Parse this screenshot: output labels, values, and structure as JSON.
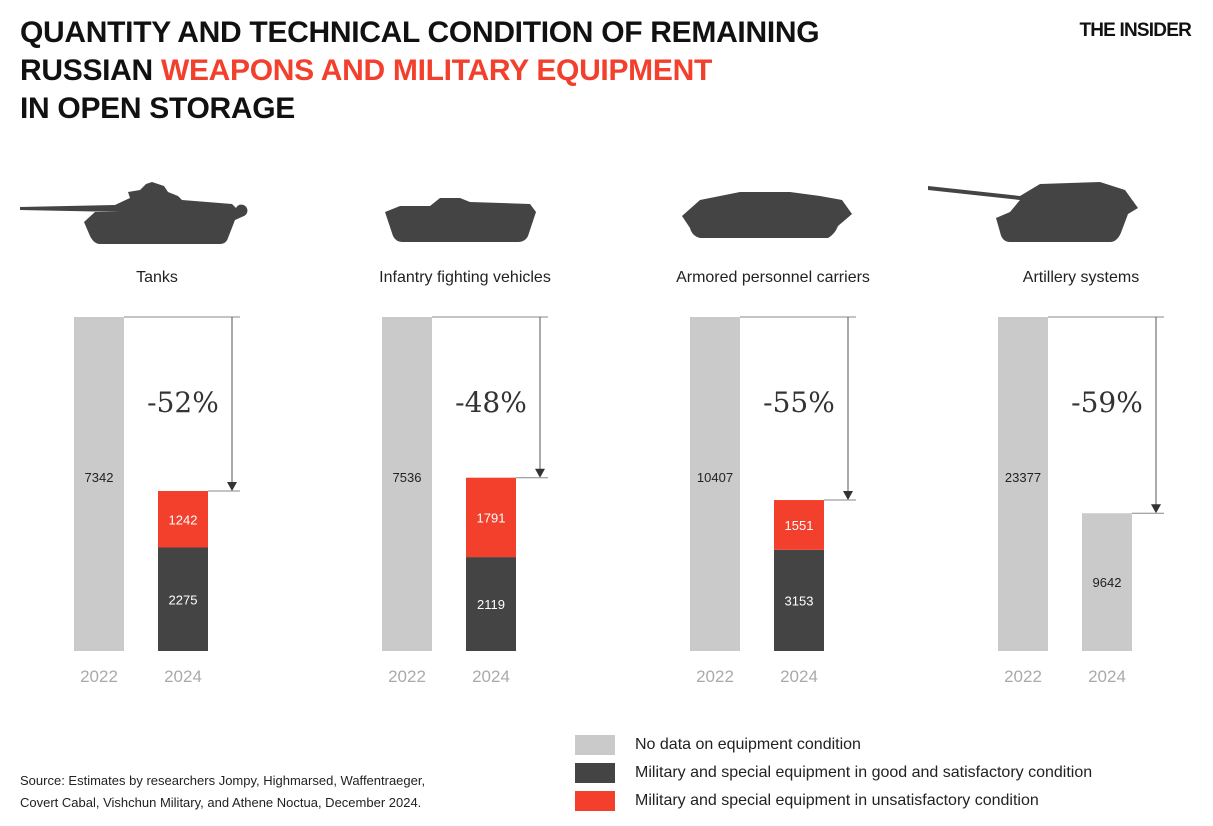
{
  "header": {
    "title_line1": "QUANTITY AND TECHNICAL CONDITION OF REMAINING",
    "title_line2_prefix": "RUSSIAN ",
    "title_line2_highlight": "WEAPONS AND MILITARY EQUIPMENT",
    "title_line3": "IN OPEN STORAGE",
    "logo": "THE INSIDER"
  },
  "colors": {
    "no_data": "#cacaca",
    "good": "#444444",
    "unsatisfactory": "#f2402d",
    "accent": "#f2402d"
  },
  "chart_data": {
    "type": "bar",
    "stacked": true,
    "years": [
      "2022",
      "2024"
    ],
    "legend": [
      {
        "key": "no_data",
        "label": "No data on equipment condition"
      },
      {
        "key": "good",
        "label": "Military and special equipment in good and satisfactory condition"
      },
      {
        "key": "unsatisfactory",
        "label": "Military and special equipment in unsatisfactory condition"
      }
    ],
    "panels": [
      {
        "category": "Tanks",
        "icon": "tank-icon",
        "change": "-52%",
        "y2022": {
          "no_data": 7342
        },
        "y2024": {
          "good": 2275,
          "unsatisfactory": 1242
        }
      },
      {
        "category": "Infantry fighting vehicles",
        "icon": "ifv-icon",
        "change": "-48%",
        "y2022": {
          "no_data": 7536
        },
        "y2024": {
          "good": 2119,
          "unsatisfactory": 1791
        }
      },
      {
        "category": "Armored personnel carriers",
        "icon": "apc-icon",
        "change": "-55%",
        "y2022": {
          "no_data": 10407
        },
        "y2024": {
          "good": 3153,
          "unsatisfactory": 1551
        }
      },
      {
        "category": "Artillery systems",
        "icon": "artillery-icon",
        "change": "-59%",
        "y2022": {
          "no_data": 23377
        },
        "y2024": {
          "no_data": 9642
        }
      }
    ]
  },
  "footer": {
    "source_line1": "Source: Estimates by researchers Jompy, Highmarsed, Waffentraeger,",
    "source_line2": "Covert Cabal, Vishchun Military, and Athene Noctua, December 2024."
  }
}
